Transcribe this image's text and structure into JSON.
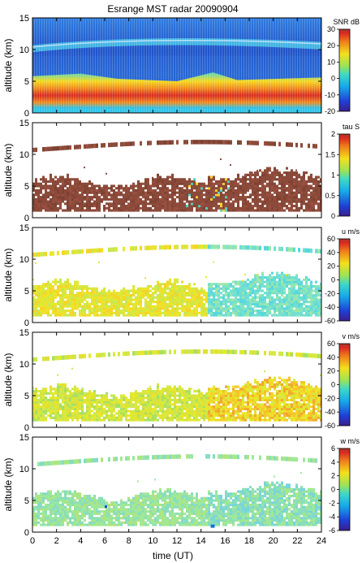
{
  "chart_data": {
    "type": "heatmap",
    "title": "Esrange MST radar 20090904",
    "xlabel": "time (UT)",
    "x_ticks": [
      0,
      2,
      4,
      6,
      8,
      10,
      12,
      14,
      16,
      18,
      20,
      22,
      24
    ],
    "xlim": [
      0,
      24
    ],
    "ylim": [
      0,
      15
    ],
    "y_ticks": [
      0,
      5,
      10,
      15
    ],
    "panels": [
      {
        "ylabel": "altitude (km)",
        "colorbar_label": "SNR dB",
        "colorbar_ticks": [
          30,
          20,
          10,
          0,
          -10,
          -20
        ],
        "clim": [
          -20,
          30
        ],
        "grid": false,
        "features": "dense field; high SNR 1-5 km, tropopause band near 10-11 km"
      },
      {
        "ylabel": "altitude (km)",
        "colorbar_label": "tau S",
        "colorbar_ticks": [
          2,
          1.5,
          1,
          0.5,
          0
        ],
        "clim": [
          0,
          2
        ],
        "grid": false,
        "features": "echo layer 1-6 km and thin layer near 11 km, mostly saturated (dark red)"
      },
      {
        "ylabel": "altitude (km)",
        "colorbar_label": "u m/s",
        "colorbar_ticks": [
          60,
          40,
          20,
          0,
          -20,
          -40,
          -60
        ],
        "clim": [
          -60,
          60
        ],
        "grid": false,
        "features": "weak-to-moderate winds; yellow before 15 UT, cyan after"
      },
      {
        "ylabel": "altitude (km)",
        "colorbar_label": "v m/s",
        "colorbar_ticks": [
          60,
          40,
          20,
          0,
          -20,
          -40,
          -60
        ],
        "clim": [
          -60,
          60
        ],
        "grid": false,
        "features": "mostly light green/yellow"
      },
      {
        "ylabel": "altitude (km)",
        "colorbar_label": "w m/s",
        "colorbar_ticks": [
          6,
          4,
          2,
          0,
          -2,
          -4,
          -6
        ],
        "clim": [
          -6,
          6
        ],
        "grid": false,
        "features": "near-zero vertical wind (pale green/cyan)"
      }
    ]
  }
}
